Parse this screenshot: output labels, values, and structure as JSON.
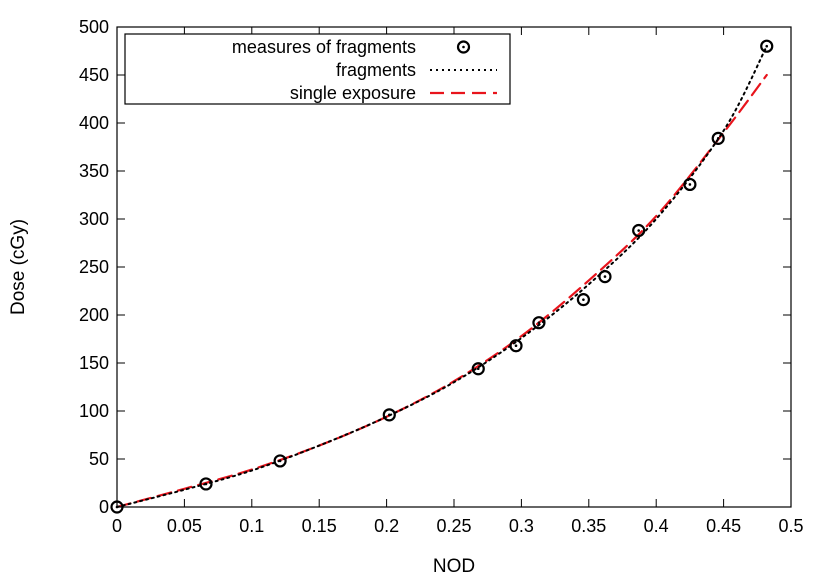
{
  "chart_data": {
    "type": "scatter",
    "xlabel": "NOD",
    "ylabel": "Dose (cGy)",
    "xlim": [
      0,
      0.5
    ],
    "ylim": [
      0,
      500
    ],
    "xticks": [
      0,
      0.05,
      0.1,
      0.15,
      0.2,
      0.25,
      0.3,
      0.35,
      0.4,
      0.45,
      0.5
    ],
    "xtick_labels": [
      "0",
      "0.05",
      "0.1",
      "0.15",
      "0.2",
      "0.25",
      "0.3",
      "0.35",
      "0.4",
      "0.45",
      "0.5"
    ],
    "yticks": [
      0,
      50,
      100,
      150,
      200,
      250,
      300,
      350,
      400,
      450,
      500
    ],
    "ytick_labels": [
      "0",
      "50",
      "100",
      "150",
      "200",
      "250",
      "300",
      "350",
      "400",
      "450",
      "500"
    ],
    "legend_position": "top-left",
    "series": [
      {
        "name": "measures of fragments",
        "kind": "points",
        "marker": "circle-dot",
        "color": "#000000",
        "x": [
          0,
          0.066,
          0.121,
          0.202,
          0.268,
          0.296,
          0.313,
          0.346,
          0.362,
          0.387,
          0.425,
          0.446,
          0.482
        ],
        "y": [
          0,
          24,
          48,
          96,
          144,
          168,
          192,
          216,
          240,
          288,
          336,
          384,
          480
        ]
      },
      {
        "name": "fragments",
        "kind": "line",
        "style": "dotted",
        "color": "#000000",
        "x": [
          0,
          0.05,
          0.1,
          0.15,
          0.2,
          0.25,
          0.3,
          0.35,
          0.4,
          0.45,
          0.482
        ],
        "y": [
          0,
          18,
          38,
          64,
          94,
          130,
          176,
          232,
          300,
          392,
          480
        ]
      },
      {
        "name": "single exposure",
        "kind": "line",
        "style": "dashed",
        "color": "#e8141c",
        "x": [
          0,
          0.05,
          0.1,
          0.15,
          0.2,
          0.25,
          0.3,
          0.35,
          0.4,
          0.45,
          0.482
        ],
        "y": [
          0,
          19,
          39,
          64,
          94,
          131,
          178,
          236,
          303,
          390,
          450
        ]
      }
    ]
  }
}
